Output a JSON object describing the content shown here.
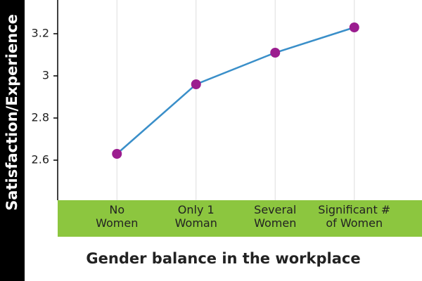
{
  "chart_data": {
    "type": "line",
    "y_label": "Satisfaction/Experience",
    "x_label": "Gender balance in the workplace",
    "categories": [
      "No\nWomen",
      "Only 1\nWoman",
      "Several\nWomen",
      "Significant #\nof Women"
    ],
    "values": [
      2.63,
      2.96,
      3.11,
      3.23
    ],
    "color": "#3a8fc9",
    "marker_color": "#9b1d8f",
    "ylim": [
      2.41,
      3.36
    ],
    "yticks": [
      2.6,
      2.8,
      3.0,
      3.2
    ],
    "grid": true
  }
}
